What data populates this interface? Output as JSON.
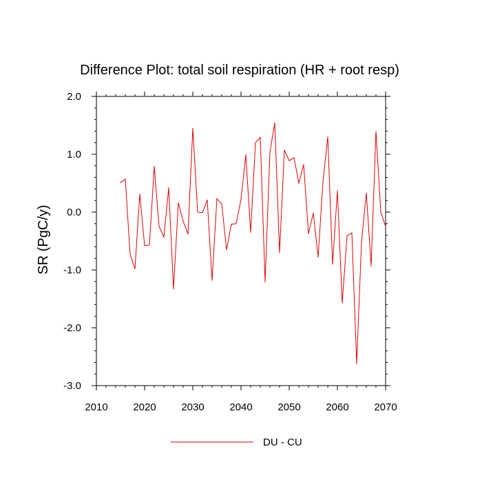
{
  "chart_data": {
    "type": "line",
    "title": "Difference Plot: total soil respiration (HR + root resp)",
    "xlabel": "",
    "ylabel": "SR  (PgC/y)",
    "xlim": [
      2010,
      2070
    ],
    "ylim": [
      -3.0,
      2.0
    ],
    "xticks": [
      2010,
      2020,
      2030,
      2040,
      2050,
      2060,
      2070
    ],
    "xtick_labels": [
      "2010",
      "2020",
      "2030",
      "2040",
      "2050",
      "2060",
      "2070"
    ],
    "yticks": [
      -3.0,
      -2.0,
      -1.0,
      0.0,
      1.0,
      2.0
    ],
    "ytick_labels": [
      "-3.0",
      "-2.0",
      "-1.0",
      "0.0",
      "1.0",
      "2.0"
    ],
    "grid": false,
    "legend_position": "bottom-center",
    "series": [
      {
        "name": "DU - CU",
        "color": "#e00000",
        "x": [
          2015,
          2016,
          2017,
          2018,
          2019,
          2020,
          2021,
          2022,
          2023,
          2024,
          2025,
          2026,
          2027,
          2028,
          2029,
          2030,
          2031,
          2032,
          2033,
          2034,
          2035,
          2036,
          2037,
          2038,
          2039,
          2040,
          2041,
          2042,
          2043,
          2044,
          2045,
          2046,
          2047,
          2048,
          2049,
          2050,
          2051,
          2052,
          2053,
          2054,
          2055,
          2056,
          2057,
          2058,
          2059,
          2060,
          2061,
          2062,
          2063,
          2064,
          2065,
          2066,
          2067,
          2068,
          2069,
          2070
        ],
        "values": [
          0.51,
          0.57,
          -0.73,
          -0.98,
          0.31,
          -0.58,
          -0.57,
          0.79,
          -0.25,
          -0.43,
          0.42,
          -1.33,
          0.16,
          -0.16,
          -0.38,
          1.45,
          0.0,
          -0.01,
          0.21,
          -1.18,
          0.23,
          0.14,
          -0.65,
          -0.21,
          -0.2,
          0.22,
          0.99,
          -0.35,
          1.2,
          1.29,
          -1.21,
          1.04,
          1.54,
          -0.7,
          1.07,
          0.89,
          0.94,
          0.5,
          0.82,
          -0.37,
          -0.02,
          -0.78,
          0.52,
          1.3,
          -0.9,
          0.37,
          -1.57,
          -0.41,
          -0.36,
          -2.62,
          -0.52,
          0.33,
          -0.93,
          1.39,
          0.0,
          -0.25
        ]
      }
    ]
  }
}
